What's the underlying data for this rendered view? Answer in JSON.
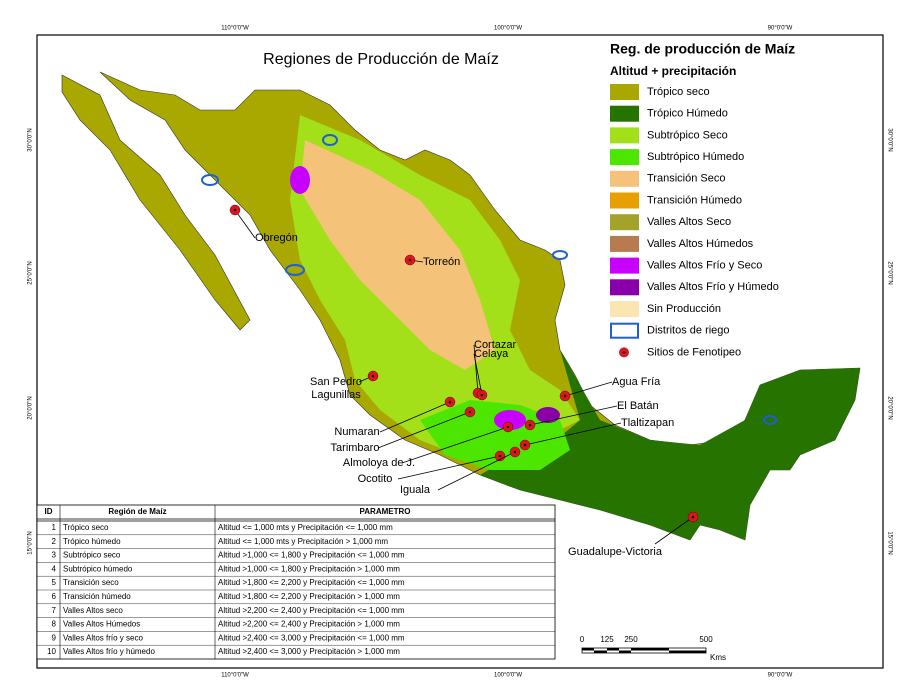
{
  "title": "Regiones de Producción de Maíz",
  "legend": {
    "title": "Reg. de producción de Maíz",
    "subtitle": "Altitud + precipitación",
    "items": [
      {
        "label": "Trópico seco",
        "color": "#a8a800"
      },
      {
        "label": "Trópico Húmedo",
        "color": "#267300"
      },
      {
        "label": "Subtrópico Seco",
        "color": "#a3e01a"
      },
      {
        "label": "Subtrópico Húmedo",
        "color": "#4ce600"
      },
      {
        "label": "Transición Seco",
        "color": "#f5c27a"
      },
      {
        "label": "Transición Húmedo",
        "color": "#e6a000"
      },
      {
        "label": "Valles Altos Seco",
        "color": "#a3a32a"
      },
      {
        "label": "Valles Altos Húmedos",
        "color": "#b87a4f"
      },
      {
        "label": "Valles Altos Frío y Seco",
        "color": "#c800ff"
      },
      {
        "label": "Valles Altos Frío y Húmedo",
        "color": "#8a00a8"
      },
      {
        "label": "Sin Producción",
        "color": "#fae6b0"
      },
      {
        "label": "Distritos de riego",
        "color": "#1f5fd6"
      },
      {
        "label": "Sitios de Fenotipeo",
        "color": "#e0141e"
      }
    ]
  },
  "sites": [
    {
      "label": [
        "Obregón"
      ]
    },
    {
      "label": [
        "Torreón"
      ]
    },
    {
      "label": [
        "Cortazar"
      ]
    },
    {
      "label": [
        "Celaya"
      ]
    },
    {
      "label": [
        "San Pedro",
        "Lagunillas"
      ]
    },
    {
      "label": [
        "Agua Fría"
      ]
    },
    {
      "label": [
        "El Batán"
      ]
    },
    {
      "label": [
        "Tlaltizapan"
      ]
    },
    {
      "label": [
        "Numaran"
      ]
    },
    {
      "label": [
        "Tarimbaro"
      ]
    },
    {
      "label": [
        "Almoloya de J."
      ]
    },
    {
      "label": [
        "Ocotito"
      ]
    },
    {
      "label": [
        "Iguala"
      ]
    },
    {
      "label": [
        "Guadalupe-Victoria"
      ]
    }
  ],
  "graticule": {
    "longitudes": [
      "110°0'0\"W",
      "100°0'0\"W",
      "90°0'0\"W"
    ],
    "latitudes": [
      "30°0'0\"N",
      "25°0'0\"N",
      "20°0'0\"N",
      "15°0'0\"N"
    ]
  },
  "scale": {
    "ticks": [
      "0",
      "125",
      "250",
      "500"
    ],
    "unit": "Kms"
  },
  "table": {
    "header": [
      "ID",
      "Región de Maíz",
      "PARAMETRO"
    ],
    "rows": [
      [
        "1",
        "Trópico seco",
        "Altitud <= 1,000 mts y Precipitación <= 1,000 mm"
      ],
      [
        "2",
        "Trópico húmedo",
        "Altitud <= 1,000 mts y Precipitación > 1,000 mm"
      ],
      [
        "3",
        "Subtrópico seco",
        "Altitud >1,000 <= 1,800 y Precipitación <= 1,000 mm"
      ],
      [
        "4",
        "Subtrópico húmedo",
        "Altitud >1,000 <= 1,800 y Precipitación > 1,000 mm"
      ],
      [
        "5",
        "Transición seco",
        "Altitud >1,800 <= 2,200 y Precipitación <= 1,000 mm"
      ],
      [
        "6",
        "Transición húmedo",
        "Altitud >1,800 <= 2,200 y Precipitación > 1,000 mm"
      ],
      [
        "7",
        "Valles Altos seco",
        "Altitud >2,200 <= 2,400 y Precipitación <= 1,000 mm"
      ],
      [
        "8",
        "Valles Altos Húmedos",
        "Altitud >2,200 <= 2,400 y Precipitación  > 1,000 mm"
      ],
      [
        "9",
        "Valles Altos frío y seco",
        "Altitud >2,400 <= 3,000 y Precipitación <=  1,000 mm"
      ],
      [
        "10",
        "Valles Altos frío y húmedo",
        "Altitud >2,400 <= 3,000 y Precipitación > 1,000 mm"
      ]
    ]
  }
}
